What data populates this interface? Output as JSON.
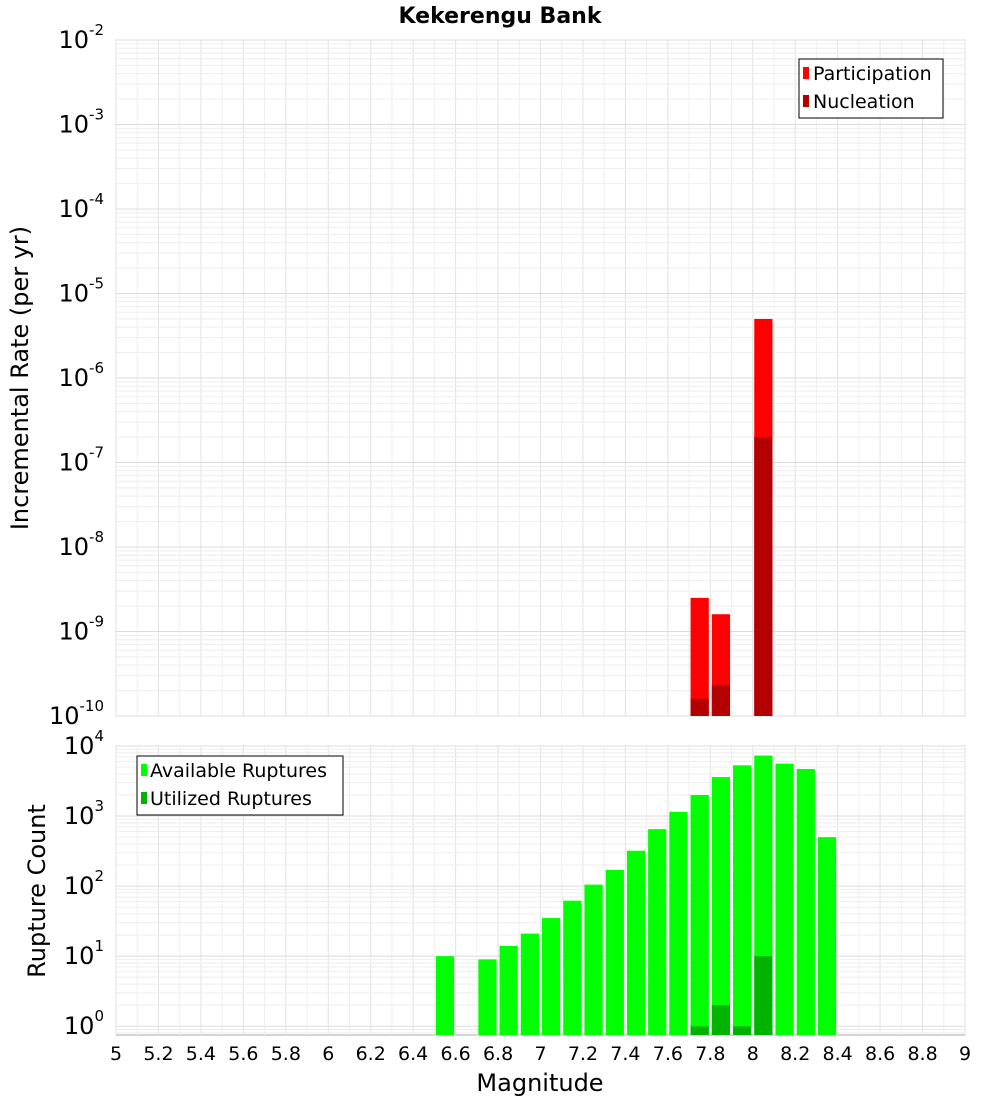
{
  "chart_data": [
    {
      "type": "bar",
      "title": "Kekerengu Bank",
      "xlabel": "",
      "ylabel": "Incremental Rate (per yr)",
      "yscale": "log",
      "ylim": [
        1e-10,
        0.01
      ],
      "xlim": [
        5,
        9
      ],
      "bin_width": 0.1,
      "grid": true,
      "legend": {
        "position": "top-right",
        "entries": [
          {
            "name": "Participation",
            "color": "#ff0000"
          },
          {
            "name": "Nucleation",
            "color": "#b30000"
          }
        ]
      },
      "y_ticks": [
        {
          "base": "10",
          "exp": "-2"
        },
        {
          "base": "10",
          "exp": "-3"
        },
        {
          "base": "10",
          "exp": "-4"
        },
        {
          "base": "10",
          "exp": "-5"
        },
        {
          "base": "10",
          "exp": "-6"
        },
        {
          "base": "10",
          "exp": "-7"
        },
        {
          "base": "10",
          "exp": "-8"
        },
        {
          "base": "10",
          "exp": "-9"
        },
        {
          "base": "10",
          "exp": "-10"
        }
      ],
      "series": [
        {
          "name": "Participation",
          "color": "#ff0000",
          "points": [
            [
              7.75,
              2.5e-09
            ],
            [
              7.85,
              1.6e-09
            ],
            [
              8.05,
              5e-06
            ]
          ]
        },
        {
          "name": "Nucleation",
          "color": "#b30000",
          "points": [
            [
              7.75,
              1.6e-10
            ],
            [
              7.85,
              2.3e-10
            ],
            [
              8.05,
              2e-07
            ]
          ]
        }
      ]
    },
    {
      "type": "bar",
      "title": "",
      "xlabel": "Magnitude",
      "ylabel": "Rupture Count",
      "yscale": "log",
      "ylim": [
        0.75,
        10000
      ],
      "xlim": [
        5,
        9
      ],
      "bin_width": 0.1,
      "grid": true,
      "x_ticks": [
        "5",
        "5.2",
        "5.4",
        "5.6",
        "5.8",
        "6",
        "6.2",
        "6.4",
        "6.6",
        "6.8",
        "7",
        "7.2",
        "7.4",
        "7.6",
        "7.8",
        "8",
        "8.2",
        "8.4",
        "8.6",
        "8.8",
        "9"
      ],
      "legend": {
        "position": "top-left",
        "entries": [
          {
            "name": "Available Ruptures",
            "color": "#00ff00"
          },
          {
            "name": "Utilized Ruptures",
            "color": "#00b300"
          }
        ]
      },
      "y_ticks": [
        {
          "base": "10",
          "exp": "4"
        },
        {
          "base": "10",
          "exp": "3"
        },
        {
          "base": "10",
          "exp": "2"
        },
        {
          "base": "10",
          "exp": "1"
        },
        {
          "base": "10",
          "exp": "0"
        }
      ],
      "series": [
        {
          "name": "Available Ruptures",
          "color": "#00ff00",
          "points": [
            [
              6.55,
              10
            ],
            [
              6.75,
              9
            ],
            [
              6.85,
              14
            ],
            [
              6.95,
              21
            ],
            [
              7.05,
              35
            ],
            [
              7.15,
              62
            ],
            [
              7.25,
              105
            ],
            [
              7.35,
              170
            ],
            [
              7.45,
              320
            ],
            [
              7.55,
              650
            ],
            [
              7.65,
              1150
            ],
            [
              7.75,
              2000
            ],
            [
              7.85,
              3600
            ],
            [
              7.95,
              5300
            ],
            [
              8.05,
              7300
            ],
            [
              8.15,
              5600
            ],
            [
              8.25,
              4700
            ],
            [
              8.35,
              500
            ]
          ]
        },
        {
          "name": "Utilized Ruptures",
          "color": "#00b300",
          "points": [
            [
              7.75,
              1
            ],
            [
              7.85,
              2
            ],
            [
              7.95,
              1
            ],
            [
              8.05,
              10
            ]
          ]
        }
      ]
    }
  ]
}
